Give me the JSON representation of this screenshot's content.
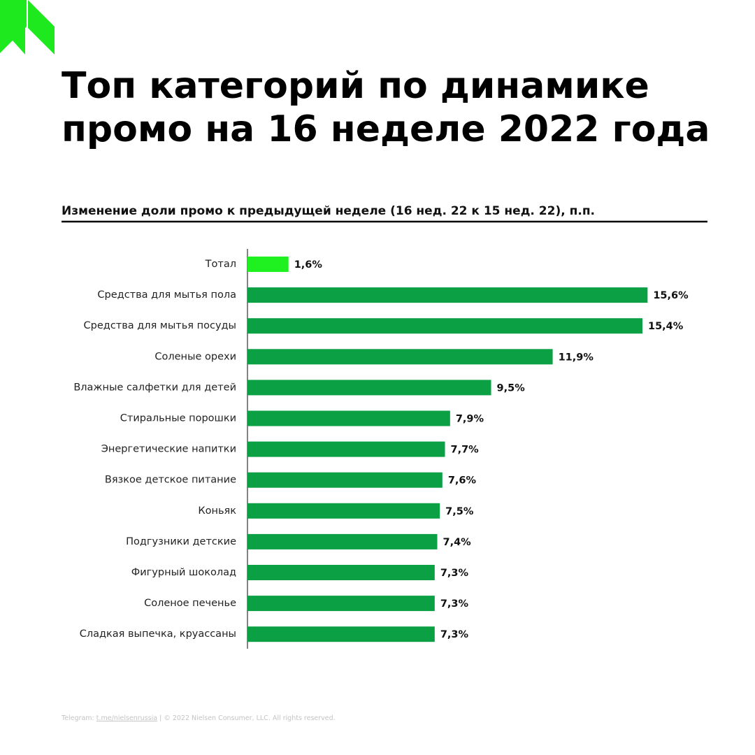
{
  "chart_data": {
    "type": "bar",
    "orientation": "horizontal",
    "title_lines": [
      "Топ категорий по динамике",
      "промо на 16 неделе 2022 года"
    ],
    "subtitle": "Изменение доли промо к предыдущей неделе (16 нед. 22 к 15 нед. 22), п.п.",
    "categories": [
      "Тотал",
      "Средства для мытья пола",
      "Средства для мытья посуды",
      "Соленые орехи",
      "Влажные салфетки для детей",
      "Стиральные порошки",
      "Энергетические напитки",
      "Вязкое детское питание",
      "Коньяк",
      "Подгузники детские",
      "Фигурный шоколад",
      "Соленое печенье",
      "Сладкая выпечка, круассаны"
    ],
    "values": [
      1.6,
      15.6,
      15.4,
      11.9,
      9.5,
      7.9,
      7.7,
      7.6,
      7.5,
      7.4,
      7.3,
      7.3,
      7.3
    ],
    "value_labels": [
      "1,6%",
      "15,6%",
      "15,4%",
      "11,9%",
      "9,5%",
      "7,9%",
      "7,7%",
      "7,6%",
      "7,5%",
      "7,4%",
      "7,3%",
      "7,3%",
      "7,3%"
    ],
    "colors": [
      "#1ff01f",
      "#0aa043",
      "#0aa043",
      "#0aa043",
      "#0aa043",
      "#0aa043",
      "#0aa043",
      "#0aa043",
      "#0aa043",
      "#0aa043",
      "#0aa043",
      "#0aa043",
      "#0aa043"
    ],
    "xlim": [
      0,
      16
    ]
  },
  "footer": {
    "label": "Telegram:",
    "link": "t.me/nielsenrussia",
    "copyright": "|  © 2022 Nielsen Consumer, LLC. All rights reserved."
  }
}
